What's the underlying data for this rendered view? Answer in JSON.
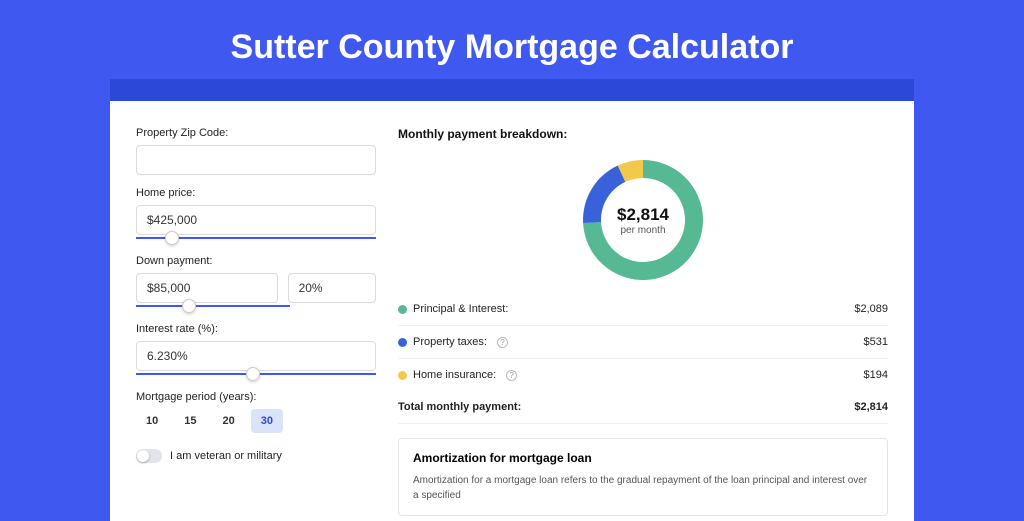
{
  "header": {
    "title": "Sutter County Mortgage Calculator"
  },
  "form": {
    "zip": {
      "label": "Property Zip Code:",
      "value": ""
    },
    "homePrice": {
      "label": "Home price:",
      "value": "$425,000",
      "slider_pos_pct": 12
    },
    "downPayment": {
      "label": "Down payment:",
      "value": "$85,000",
      "pct": "20%",
      "slider_pos_pct": 30
    },
    "interest": {
      "label": "Interest rate (%):",
      "value": "6.230%",
      "slider_pos_pct": 46
    },
    "period": {
      "label": "Mortgage period (years):",
      "options": [
        "10",
        "15",
        "20",
        "30"
      ],
      "selected": "30"
    },
    "veteran": {
      "label": "I am veteran or military",
      "checked": false
    }
  },
  "breakdown": {
    "title": "Monthly payment breakdown:",
    "donut": {
      "amount": "$2,814",
      "subtitle": "per month",
      "slices": [
        {
          "color": "#57b894",
          "pct": 74.2
        },
        {
          "color": "#3a62d8",
          "pct": 18.9
        },
        {
          "color": "#f3c84b",
          "pct": 6.9
        }
      ],
      "ring_width": 18
    },
    "items": [
      {
        "color": "#57b894",
        "label": "Principal & Interest:",
        "value": "$2,089",
        "info": false
      },
      {
        "color": "#3a62d8",
        "label": "Property taxes:",
        "value": "$531",
        "info": true
      },
      {
        "color": "#f3c84b",
        "label": "Home insurance:",
        "value": "$194",
        "info": true
      }
    ],
    "total": {
      "label": "Total monthly payment:",
      "value": "$2,814"
    }
  },
  "amortization": {
    "title": "Amortization for mortgage loan",
    "body": "Amortization for a mortgage loan refers to the gradual repayment of the loan principal and interest over a specified"
  },
  "colors": {
    "page_bg": "#3f59f0",
    "bar_bg": "#2c48d6",
    "card_bg": "#ffffff"
  }
}
